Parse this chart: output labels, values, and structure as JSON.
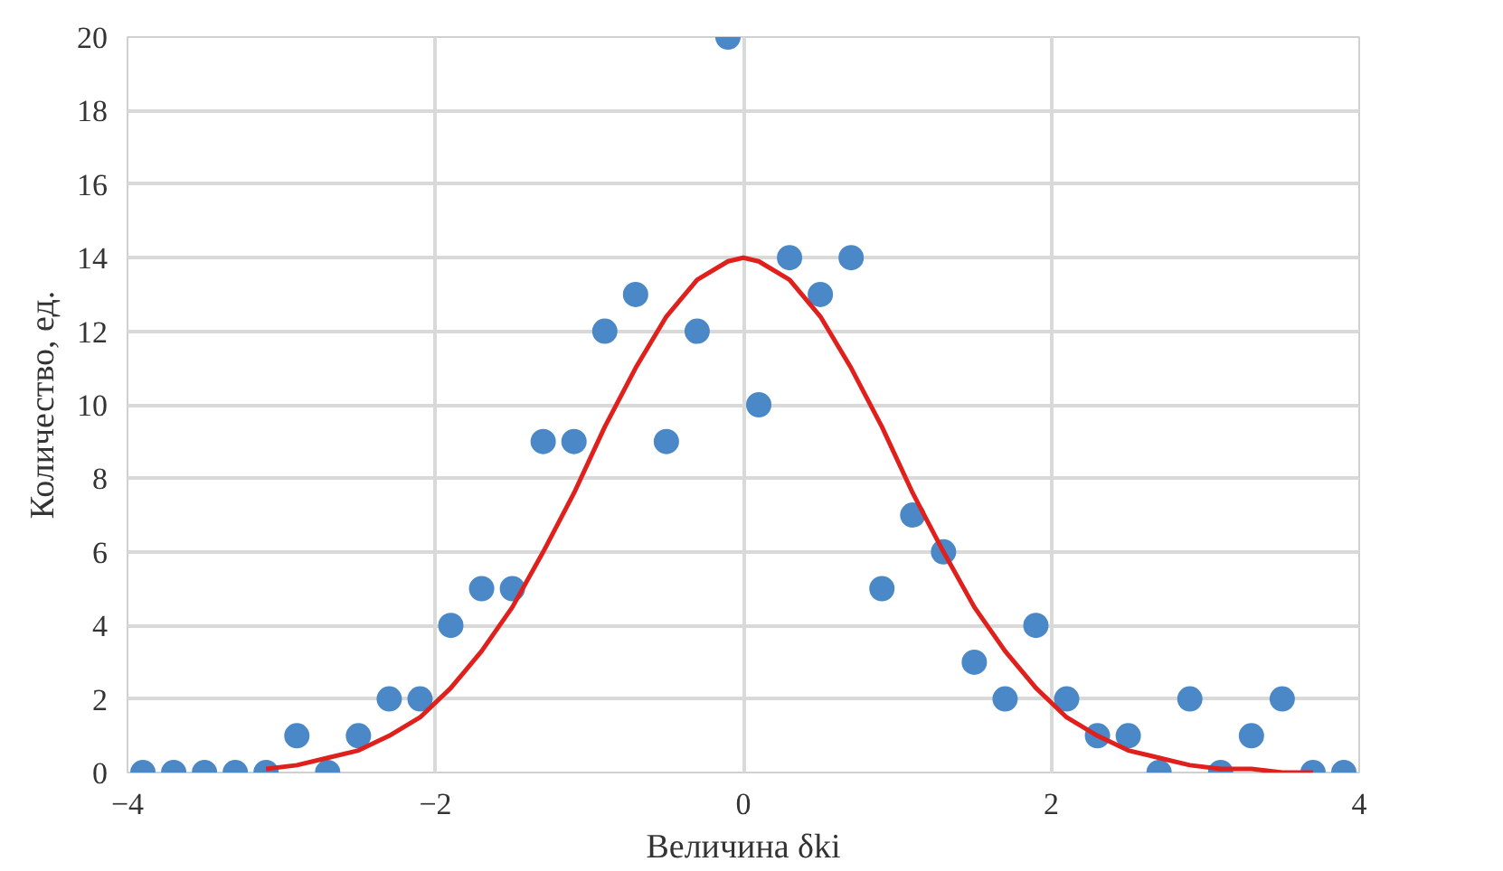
{
  "chart_data": {
    "type": "scatter",
    "xlabel": "Величина δki",
    "ylabel": "Количество, ед.",
    "xlim": [
      -4,
      4
    ],
    "xticks": [
      -4,
      -2,
      0,
      2,
      4
    ],
    "ylim": [
      0,
      20
    ],
    "yticks": [
      0,
      2,
      4,
      6,
      8,
      10,
      12,
      14,
      16,
      18,
      20
    ],
    "grid": true,
    "series": [
      {
        "marker": "circle",
        "color": "#4a88c7",
        "x": [
          -3.9,
          -3.7,
          -3.5,
          -3.3,
          -3.1,
          -2.9,
          -2.7,
          -2.5,
          -2.3,
          -2.1,
          -1.9,
          -1.7,
          -1.5,
          -1.3,
          -1.1,
          -0.9,
          -0.7,
          -0.5,
          -0.3,
          -0.1,
          0.1,
          0.3,
          0.5,
          0.7,
          0.9,
          1.1,
          1.3,
          1.5,
          1.7,
          1.9,
          2.1,
          2.3,
          2.5,
          2.7,
          2.9,
          3.1,
          3.3,
          3.5,
          3.7,
          3.9
        ],
        "values": [
          0,
          0,
          0,
          0,
          0,
          1,
          0,
          1,
          2,
          2,
          4,
          5,
          5,
          9,
          9,
          12,
          13,
          9,
          12,
          20,
          10,
          14,
          13,
          14,
          5,
          7,
          6,
          3,
          2,
          4,
          2,
          1,
          1,
          0,
          2,
          0,
          1,
          2,
          0,
          0
        ]
      },
      {
        "type": "line",
        "color": "#e0201c",
        "x": [
          -3.1,
          -2.9,
          -2.7,
          -2.5,
          -2.3,
          -2.1,
          -1.9,
          -1.7,
          -1.5,
          -1.3,
          -1.1,
          -0.9,
          -0.7,
          -0.5,
          -0.3,
          -0.1,
          0,
          0.1,
          0.3,
          0.5,
          0.7,
          0.9,
          1.1,
          1.3,
          1.5,
          1.7,
          1.9,
          2.1,
          2.3,
          2.5,
          2.7,
          2.9,
          3.1,
          3.3,
          3.5,
          3.7
        ],
        "values": [
          0.1,
          0.2,
          0.4,
          0.6,
          1.0,
          1.5,
          2.3,
          3.3,
          4.5,
          6.0,
          7.6,
          9.4,
          11.0,
          12.4,
          13.4,
          13.9,
          14,
          13.9,
          13.4,
          12.4,
          11.0,
          9.4,
          7.6,
          6.0,
          4.5,
          3.3,
          2.3,
          1.5,
          1.0,
          0.6,
          0.4,
          0.2,
          0.1,
          0.1,
          0.0,
          0.0
        ]
      }
    ]
  }
}
